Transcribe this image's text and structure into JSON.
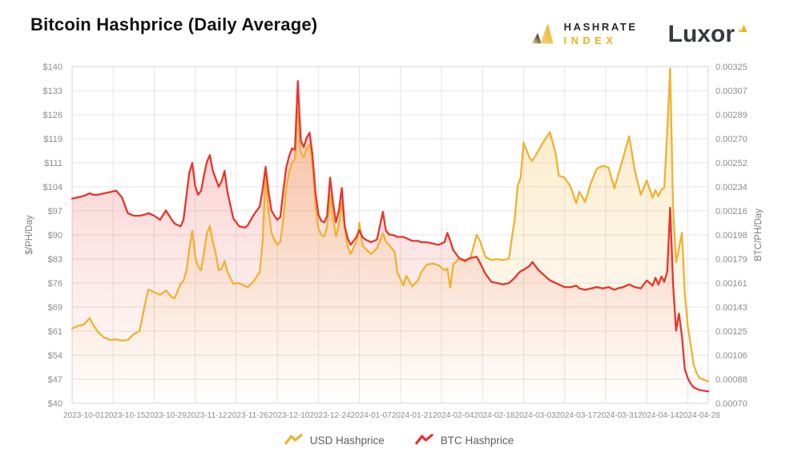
{
  "header": {
    "title": "Bitcoin Hashprice (Daily Average)"
  },
  "branding": {
    "hashrate_index": {
      "name": "Hashrate Index",
      "line1": "HASHRATE",
      "line2": "INDEX",
      "accent": "#EFB320",
      "text_color": "#26282B"
    },
    "luxor": {
      "name": "Luxor",
      "wordmark": "Luxor",
      "accent": "#EFB320",
      "text_color": "#36393D"
    }
  },
  "chart_data": {
    "type": "line",
    "title": "Bitcoin Hashprice (Daily Average)",
    "grid": true,
    "grid_color": "#E4E4E4",
    "border_color": "#D4D4D4",
    "legend_position": "bottom",
    "legend": [
      {
        "label": "USD Hashprice",
        "color": "#F0B231"
      },
      {
        "label": "BTC Hashprice",
        "color": "#E8352C"
      }
    ],
    "left_axis": {
      "label": "$/PH/Day",
      "min": 40,
      "max": 140,
      "ticks": [
        "$140",
        "$133",
        "$126",
        "$119",
        "$111",
        "$104",
        "$97",
        "$90",
        "$83",
        "$76",
        "$69",
        "$61",
        "$54",
        "$47",
        "$40"
      ]
    },
    "right_axis": {
      "label": "BTC/PH/Day",
      "min": 0.0007,
      "max": 0.00325,
      "ticks": [
        "0.00325",
        "0.00307",
        "0.00289",
        "0.00270",
        "0.00252",
        "0.00234",
        "0.00216",
        "0.00198",
        "0.00179",
        "0.00161",
        "0.00143",
        "0.00125",
        "0.00106",
        "0.00088",
        "0.00070"
      ]
    },
    "x_axis": {
      "start": "2023-09-27",
      "end": "2024-05-01",
      "gridline_interval_days": 14,
      "tick_labels": [
        "2023-10-01",
        "2023-10-15",
        "2023-10-29",
        "2023-11-12",
        "2023-11-26",
        "2023-12-10",
        "2023-12-24",
        "2024-01-07",
        "2024-01-21",
        "2024-02-04",
        "2024-02-18",
        "2024-03-03",
        "2024-03-17",
        "2024-03-31",
        "2024-04-14",
        "2024-04-28"
      ]
    },
    "dates": [
      "2023-09-27",
      "2023-09-29",
      "2023-10-01",
      "2023-10-03",
      "2023-10-04",
      "2023-10-06",
      "2023-10-08",
      "2023-10-10",
      "2023-10-12",
      "2023-10-14",
      "2023-10-16",
      "2023-10-18",
      "2023-10-20",
      "2023-10-22",
      "2023-10-23",
      "2023-10-25",
      "2023-10-27",
      "2023-10-29",
      "2023-10-31",
      "2023-11-01",
      "2023-11-03",
      "2023-11-04",
      "2023-11-05",
      "2023-11-06",
      "2023-11-07",
      "2023-11-08",
      "2023-11-09",
      "2023-11-10",
      "2023-11-11",
      "2023-11-12",
      "2023-11-13",
      "2023-11-14",
      "2023-11-15",
      "2023-11-16",
      "2023-11-17",
      "2023-11-18",
      "2023-11-19",
      "2023-11-21",
      "2023-11-23",
      "2023-11-25",
      "2023-11-26",
      "2023-11-28",
      "2023-11-30",
      "2023-12-01",
      "2023-12-02",
      "2023-12-03",
      "2023-12-04",
      "2023-12-05",
      "2023-12-06",
      "2023-12-07",
      "2023-12-08",
      "2023-12-09",
      "2023-12-10",
      "2023-12-11",
      "2023-12-12",
      "2023-12-13",
      "2023-12-14",
      "2023-12-15",
      "2023-12-16",
      "2023-12-17",
      "2023-12-18",
      "2023-12-19",
      "2023-12-20",
      "2023-12-21",
      "2023-12-22",
      "2023-12-23",
      "2023-12-24",
      "2023-12-25",
      "2023-12-26",
      "2023-12-27",
      "2023-12-28",
      "2023-12-29",
      "2023-12-30",
      "2023-12-31",
      "2024-01-02",
      "2024-01-03",
      "2024-01-04",
      "2024-01-05",
      "2024-01-07",
      "2024-01-09",
      "2024-01-11",
      "2024-01-12",
      "2024-01-13",
      "2024-01-15",
      "2024-01-16",
      "2024-01-18",
      "2024-01-19",
      "2024-01-21",
      "2024-01-23",
      "2024-01-24",
      "2024-01-26",
      "2024-01-28",
      "2024-01-30",
      "2024-02-01",
      "2024-02-02",
      "2024-02-03",
      "2024-02-04",
      "2024-02-06",
      "2024-02-08",
      "2024-02-10",
      "2024-02-12",
      "2024-02-13",
      "2024-02-15",
      "2024-02-17",
      "2024-02-19",
      "2024-02-21",
      "2024-02-23",
      "2024-02-25",
      "2024-02-26",
      "2024-02-27",
      "2024-02-28",
      "2024-03-01",
      "2024-03-02",
      "2024-03-04",
      "2024-03-06",
      "2024-03-08",
      "2024-03-10",
      "2024-03-11",
      "2024-03-13",
      "2024-03-15",
      "2024-03-17",
      "2024-03-18",
      "2024-03-20",
      "2024-03-22",
      "2024-03-24",
      "2024-03-26",
      "2024-03-28",
      "2024-03-30",
      "2024-03-31",
      "2024-04-02",
      "2024-04-04",
      "2024-04-06",
      "2024-04-08",
      "2024-04-10",
      "2024-04-12",
      "2024-04-13",
      "2024-04-14",
      "2024-04-15",
      "2024-04-16",
      "2024-04-17",
      "2024-04-18",
      "2024-04-19",
      "2024-04-20",
      "2024-04-21",
      "2024-04-22",
      "2024-04-23",
      "2024-04-24",
      "2024-04-25",
      "2024-04-26",
      "2024-04-27",
      "2024-04-28",
      "2024-05-01"
    ],
    "series": [
      {
        "id": "usd",
        "name": "USD Hashprice",
        "axis": "left_axis",
        "color": "#F0B231",
        "fill_opacity": 0.3,
        "values": [
          62.2,
          63.0,
          63.4,
          65.3,
          63.5,
          61.0,
          59.5,
          58.8,
          59.0,
          58.6,
          58.8,
          60.5,
          61.5,
          70.0,
          73.8,
          73.0,
          72.2,
          73.5,
          71.5,
          71.2,
          75.5,
          76.3,
          79.5,
          86.0,
          91.2,
          83.5,
          80.6,
          79.5,
          85.0,
          90.5,
          92.6,
          88.0,
          84.5,
          79.5,
          80.0,
          82.3,
          79.0,
          75.5,
          75.7,
          74.8,
          74.5,
          76.3,
          79.0,
          88.0,
          108.1,
          97.0,
          90.7,
          88.5,
          87.0,
          88.0,
          94.0,
          104.0,
          108.5,
          111.5,
          112.5,
          126.9,
          114.5,
          113.0,
          115.5,
          116.9,
          111.0,
          99.0,
          92.0,
          90.0,
          89.5,
          92.5,
          101.9,
          95.0,
          89.5,
          93.0,
          99.8,
          92.0,
          86.5,
          84.3,
          88.0,
          93.6,
          87.0,
          85.9,
          84.3,
          86.0,
          90.5,
          88.0,
          87.1,
          85.0,
          78.8,
          75.0,
          77.9,
          74.7,
          76.5,
          78.8,
          81.2,
          81.5,
          81.0,
          79.5,
          80.0,
          74.3,
          81.2,
          83.0,
          82.0,
          83.5,
          90.0,
          88.5,
          83.5,
          82.6,
          82.8,
          82.5,
          83.0,
          95.0,
          104.7,
          107.0,
          117.4,
          113.0,
          112.0,
          115.0,
          118.0,
          120.5,
          114.0,
          107.6,
          107.0,
          104.4,
          99.4,
          102.8,
          99.8,
          105.5,
          109.7,
          110.5,
          110.0,
          103.8,
          107.0,
          113.0,
          119.3,
          109.0,
          101.9,
          106.2,
          101.0,
          103.3,
          101.5,
          103.5,
          104.0,
          121.0,
          139.5,
          98.0,
          81.9,
          86.0,
          90.7,
          72.9,
          63.0,
          57.4,
          51.7,
          49.0,
          47.5,
          46.5
        ]
      },
      {
        "id": "btc",
        "name": "BTC Hashprice",
        "axis": "right_axis",
        "color": "#E8352C",
        "fill_opacity": 0.28,
        "values": [
          0.00225,
          0.00226,
          0.00227,
          0.00229,
          0.00228,
          0.00228,
          0.00229,
          0.0023,
          0.00231,
          0.00226,
          0.00214,
          0.00212,
          0.00212,
          0.00213,
          0.00214,
          0.00212,
          0.00209,
          0.00216,
          0.00209,
          0.00206,
          0.00204,
          0.00209,
          0.00227,
          0.00245,
          0.00252,
          0.00234,
          0.00228,
          0.00231,
          0.00243,
          0.00253,
          0.00258,
          0.00246,
          0.0024,
          0.00234,
          0.00238,
          0.00246,
          0.0023,
          0.0021,
          0.00204,
          0.00203,
          0.00205,
          0.00213,
          0.00219,
          0.00232,
          0.00249,
          0.0023,
          0.00216,
          0.00212,
          0.00209,
          0.00211,
          0.0023,
          0.00248,
          0.00257,
          0.00263,
          0.00262,
          0.00314,
          0.00269,
          0.00264,
          0.00271,
          0.00275,
          0.00258,
          0.0023,
          0.00213,
          0.00208,
          0.00207,
          0.00212,
          0.00241,
          0.00222,
          0.00207,
          0.00216,
          0.00233,
          0.00204,
          0.00195,
          0.0019,
          0.00196,
          0.00201,
          0.00196,
          0.00194,
          0.00192,
          0.00194,
          0.00215,
          0.00201,
          0.00198,
          0.00197,
          0.00196,
          0.00196,
          0.00195,
          0.00193,
          0.00193,
          0.00192,
          0.00192,
          0.00191,
          0.0019,
          0.00192,
          0.00199,
          0.00193,
          0.00186,
          0.0018,
          0.00178,
          0.0018,
          0.00181,
          0.00177,
          0.00168,
          0.00162,
          0.00161,
          0.0016,
          0.00161,
          0.00165,
          0.00168,
          0.0017,
          0.00171,
          0.00174,
          0.00177,
          0.00171,
          0.00167,
          0.00163,
          0.00161,
          0.0016,
          0.00158,
          0.00158,
          0.00159,
          0.00157,
          0.00156,
          0.00157,
          0.00158,
          0.00157,
          0.00158,
          0.00156,
          0.00157,
          0.00158,
          0.0016,
          0.00158,
          0.00157,
          0.00163,
          0.00159,
          0.00165,
          0.0016,
          0.00166,
          0.00162,
          0.0017,
          0.00218,
          0.0016,
          0.00125,
          0.00138,
          0.00121,
          0.00096,
          0.00089,
          0.00085,
          0.00082,
          0.00081,
          0.0008,
          0.00079
        ]
      }
    ]
  }
}
